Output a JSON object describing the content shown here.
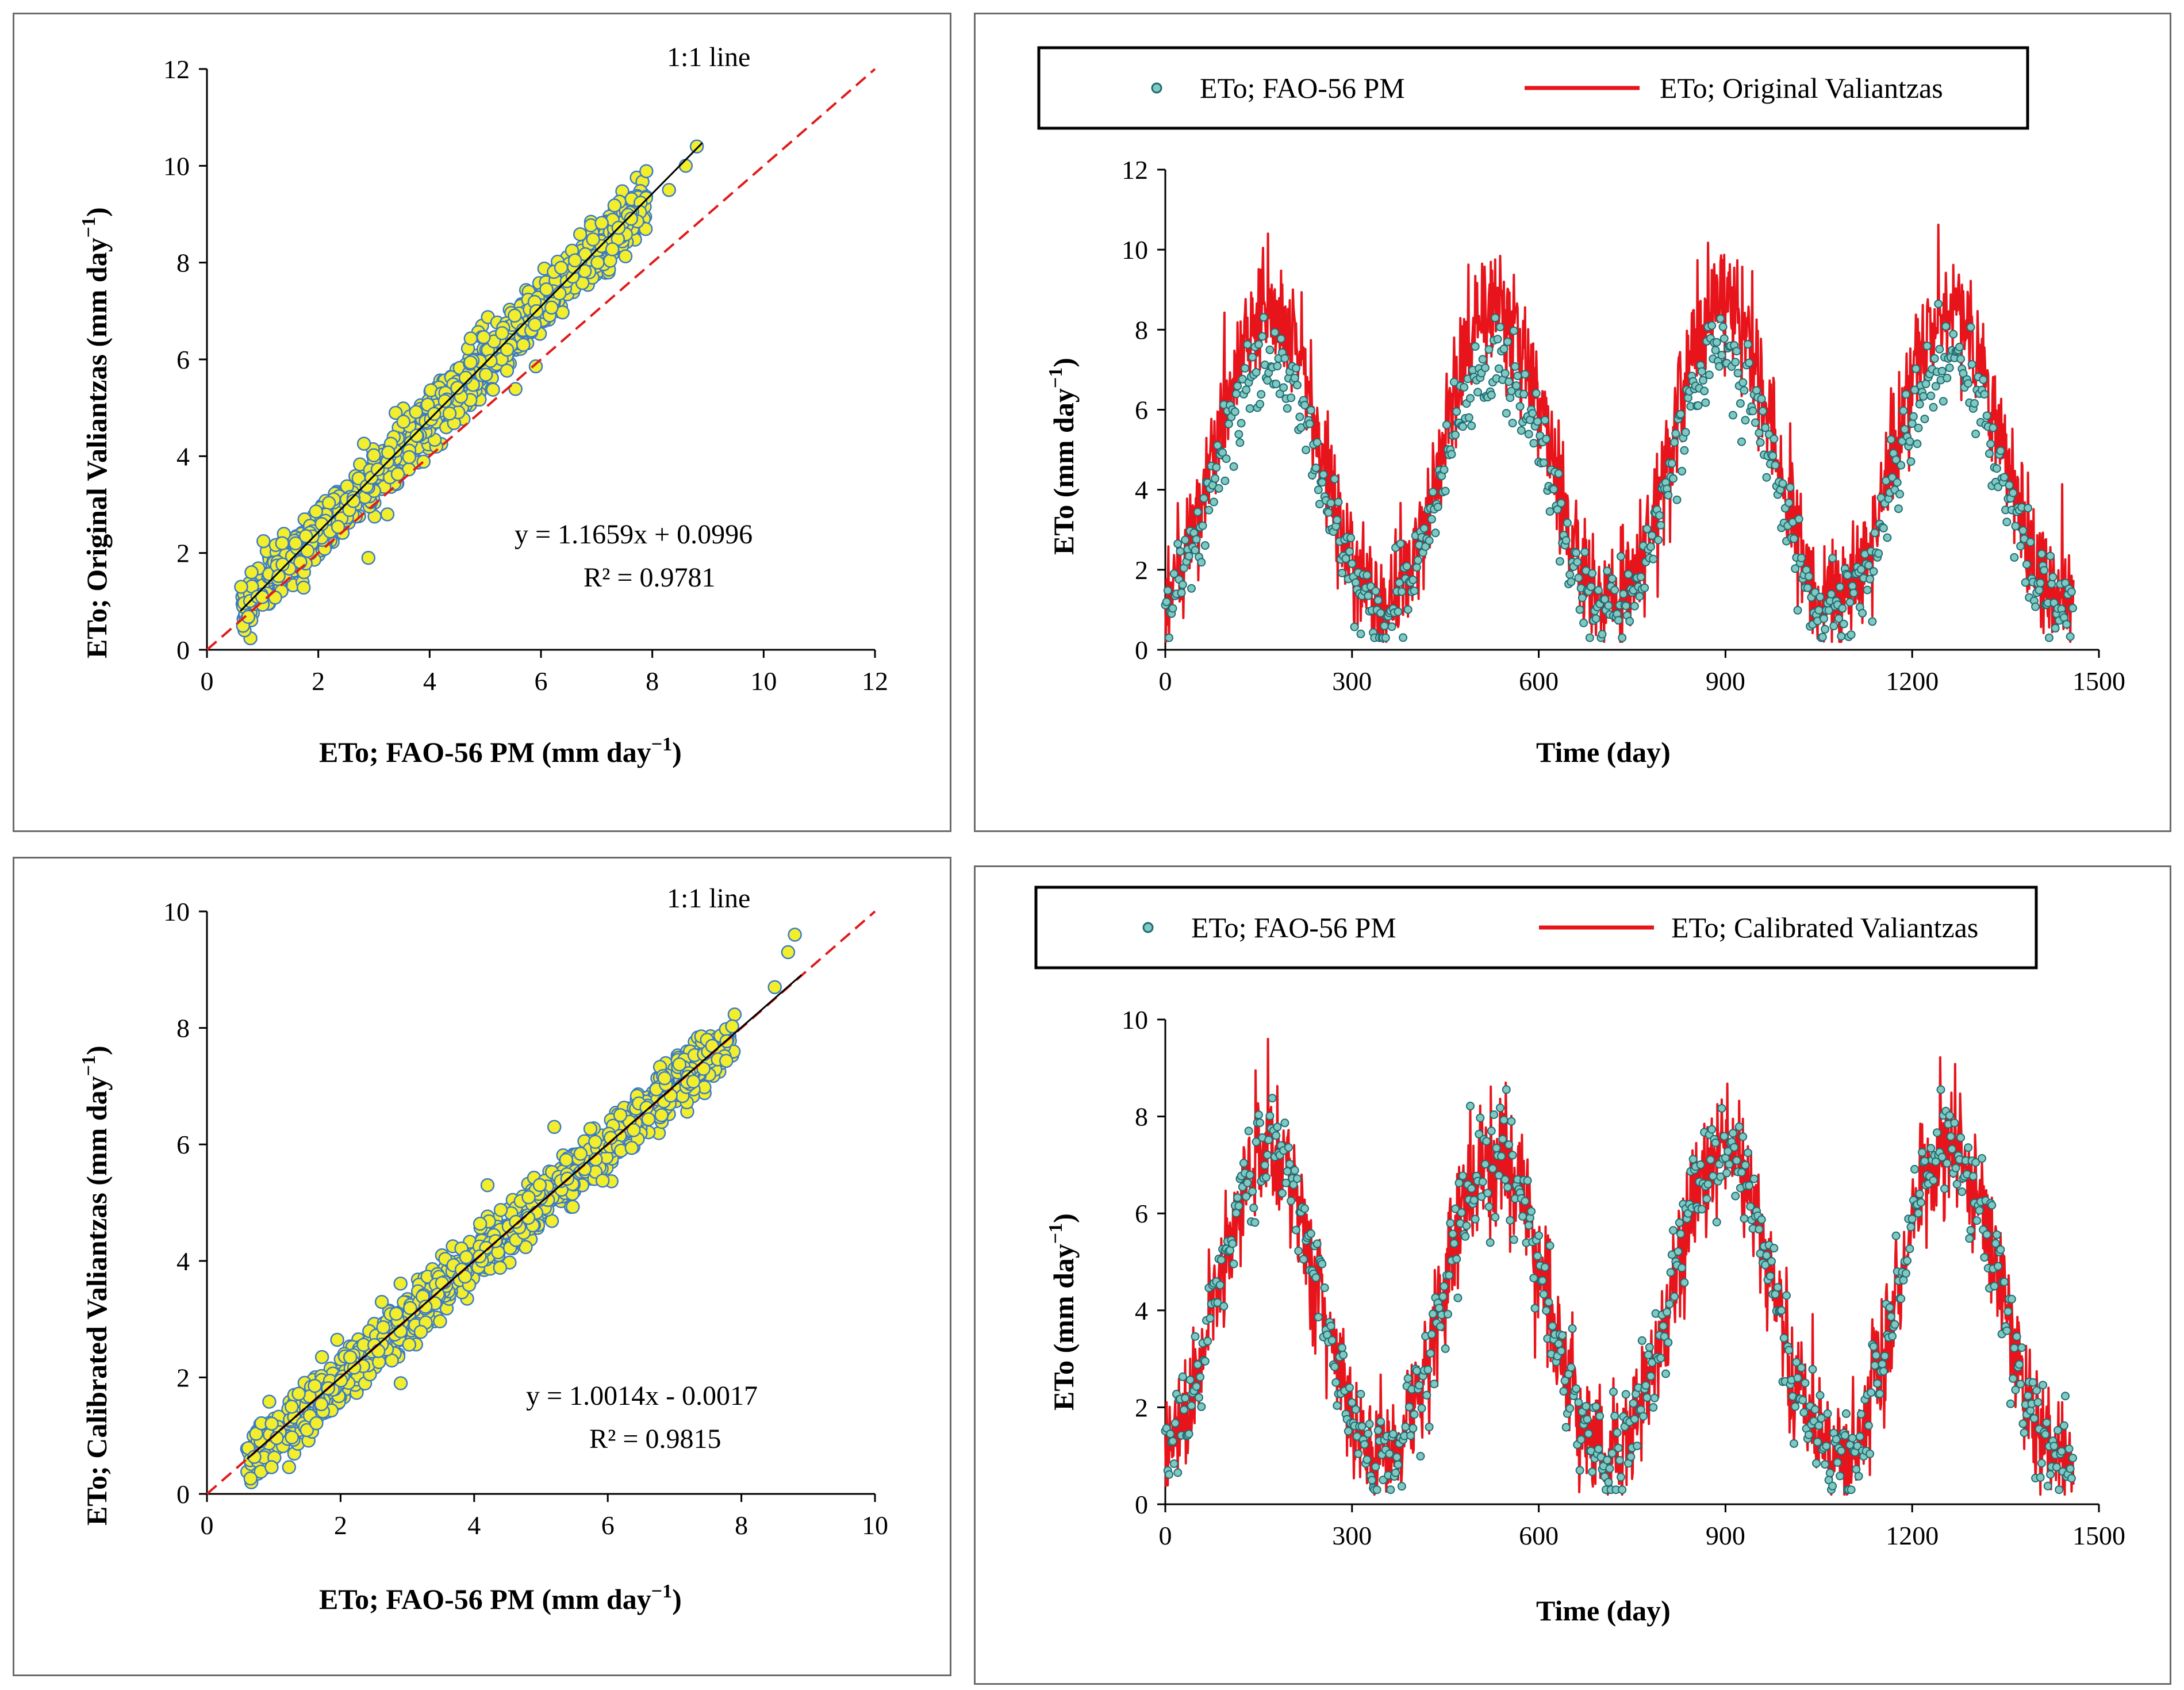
{
  "figure": {
    "panel_a": {
      "xlabel_main": "ETo; FAO-56 PM (mm day",
      "ylabel_main": "ETo; Original Valiantzas (mm day",
      "unit_exp": "−1",
      "close_paren": ")",
      "one_to_one_label": "1:1 line",
      "equation": "y = 1.1659x + 0.0996",
      "r2": "R² = 0.9781"
    },
    "panel_b": {
      "legend_series1": "ETo; FAO-56 PM",
      "legend_series2": "ETo; Original Valiantzas",
      "ylabel_main": "ETo  (mm day",
      "unit_exp": "−1",
      "close_paren": ")",
      "xlabel": "Time (day)"
    },
    "panel_c": {
      "xlabel_main": "ETo; FAO-56 PM (mm day",
      "ylabel_main": "ETo; Calibrated Valiantzas (mm day",
      "unit_exp": "−1",
      "close_paren": ")",
      "one_to_one_label": "1:1 line",
      "equation": "y = 1.0014x - 0.0017",
      "r2": "R² = 0.9815"
    },
    "panel_d": {
      "legend_series1": "ETo; FAO-56 PM",
      "legend_series2": "ETo; Calibrated Valiantzas",
      "ylabel_main": "ETo  (mm day",
      "unit_exp": "−1",
      "close_paren": ")",
      "xlabel": "Time (day)"
    }
  },
  "colors": {
    "point_fill": "#f2ee2c",
    "point_stroke": "#3b7ac7",
    "series_fao_fill": "#7fc9c0",
    "series_fao_stroke": "#1e6b74",
    "series_valiantzas": "#e8141b",
    "one_to_one": "#e01b1b",
    "fit_line": "#000000"
  },
  "chart_data": [
    {
      "id": "panel_a",
      "type": "scatter",
      "title": "",
      "xlabel": "ETo; FAO-56 PM (mm day−1)",
      "ylabel": "ETo; Original Valiantzas (mm day−1)",
      "xlim": [
        0,
        12
      ],
      "ylim": [
        0,
        12
      ],
      "xticks": [
        0,
        2,
        4,
        6,
        8,
        10,
        12
      ],
      "yticks": [
        0,
        2,
        4,
        6,
        8,
        10,
        12
      ],
      "one_to_one_range": [
        0,
        12
      ],
      "fit": {
        "slope": 1.1659,
        "intercept": 0.0996,
        "x_range": [
          0.6,
          8.9
        ],
        "r2": 0.9781
      },
      "n_points": 1200,
      "x_range": [
        0.6,
        8.9
      ],
      "scatter_sd": 0.28,
      "notable_points": [
        [
          8.8,
          10.4
        ],
        [
          8.6,
          10.0
        ],
        [
          8.3,
          9.5
        ],
        [
          0.8,
          1.6
        ],
        [
          2.9,
          1.9
        ]
      ]
    },
    {
      "id": "panel_b",
      "type": "line",
      "title": "",
      "xlabel": "Time (day)",
      "ylabel": "ETo (mm day−1)",
      "xlim": [
        0,
        1500
      ],
      "ylim": [
        0,
        12
      ],
      "xticks": [
        0,
        300,
        600,
        900,
        1200,
        1500
      ],
      "yticks": [
        0,
        2,
        4,
        6,
        8,
        10,
        12
      ],
      "days": 1460,
      "series": [
        {
          "name": "ETo; FAO-56 PM",
          "style": "markers",
          "seasonal_min": 1.0,
          "seasonal_max": 7.3,
          "peak_days": [
            165,
            545,
            910,
            1275
          ]
        },
        {
          "name": "ETo; Original Valiantzas",
          "style": "line",
          "seasonal_min": 1.2,
          "seasonal_max": 8.6,
          "peak_days": [
            165,
            545,
            910,
            1275
          ]
        }
      ],
      "max_value": 10.4,
      "max_value_day": 165
    },
    {
      "id": "panel_c",
      "type": "scatter",
      "title": "",
      "xlabel": "ETo; FAO-56 PM (mm day−1)",
      "ylabel": "ETo; Calibrated Valiantzas (mm day−1)",
      "xlim": [
        0,
        10
      ],
      "ylim": [
        0,
        10
      ],
      "xticks": [
        0,
        2,
        4,
        6,
        8,
        10
      ],
      "yticks": [
        0,
        2,
        4,
        6,
        8,
        10
      ],
      "one_to_one_range": [
        0,
        10
      ],
      "fit": {
        "slope": 1.0014,
        "intercept": -0.0017,
        "x_range": [
          0.6,
          8.9
        ],
        "r2": 0.9815
      },
      "n_points": 1200,
      "x_range": [
        0.6,
        8.9
      ],
      "scatter_sd": 0.23,
      "notable_points": [
        [
          8.8,
          9.6
        ],
        [
          8.7,
          9.3
        ],
        [
          8.5,
          8.7
        ],
        [
          2.9,
          1.9
        ],
        [
          4.2,
          5.3
        ],
        [
          5.2,
          6.3
        ]
      ]
    },
    {
      "id": "panel_d",
      "type": "line",
      "title": "",
      "xlabel": "Time (day)",
      "ylabel": "ETo (mm day−1)",
      "xlim": [
        0,
        1500
      ],
      "ylim": [
        0,
        10
      ],
      "xticks": [
        0,
        300,
        600,
        900,
        1200,
        1500
      ],
      "yticks": [
        0,
        2,
        4,
        6,
        8,
        10
      ],
      "days": 1460,
      "series": [
        {
          "name": "ETo; FAO-56 PM",
          "style": "markers",
          "seasonal_min": 1.0,
          "seasonal_max": 7.3,
          "peak_days": [
            165,
            545,
            910,
            1275
          ]
        },
        {
          "name": "ETo; Calibrated Valiantzas",
          "style": "line",
          "seasonal_min": 1.0,
          "seasonal_max": 7.3,
          "peak_days": [
            165,
            545,
            910,
            1275
          ]
        }
      ],
      "max_value": 9.6,
      "max_value_day": 165
    }
  ]
}
